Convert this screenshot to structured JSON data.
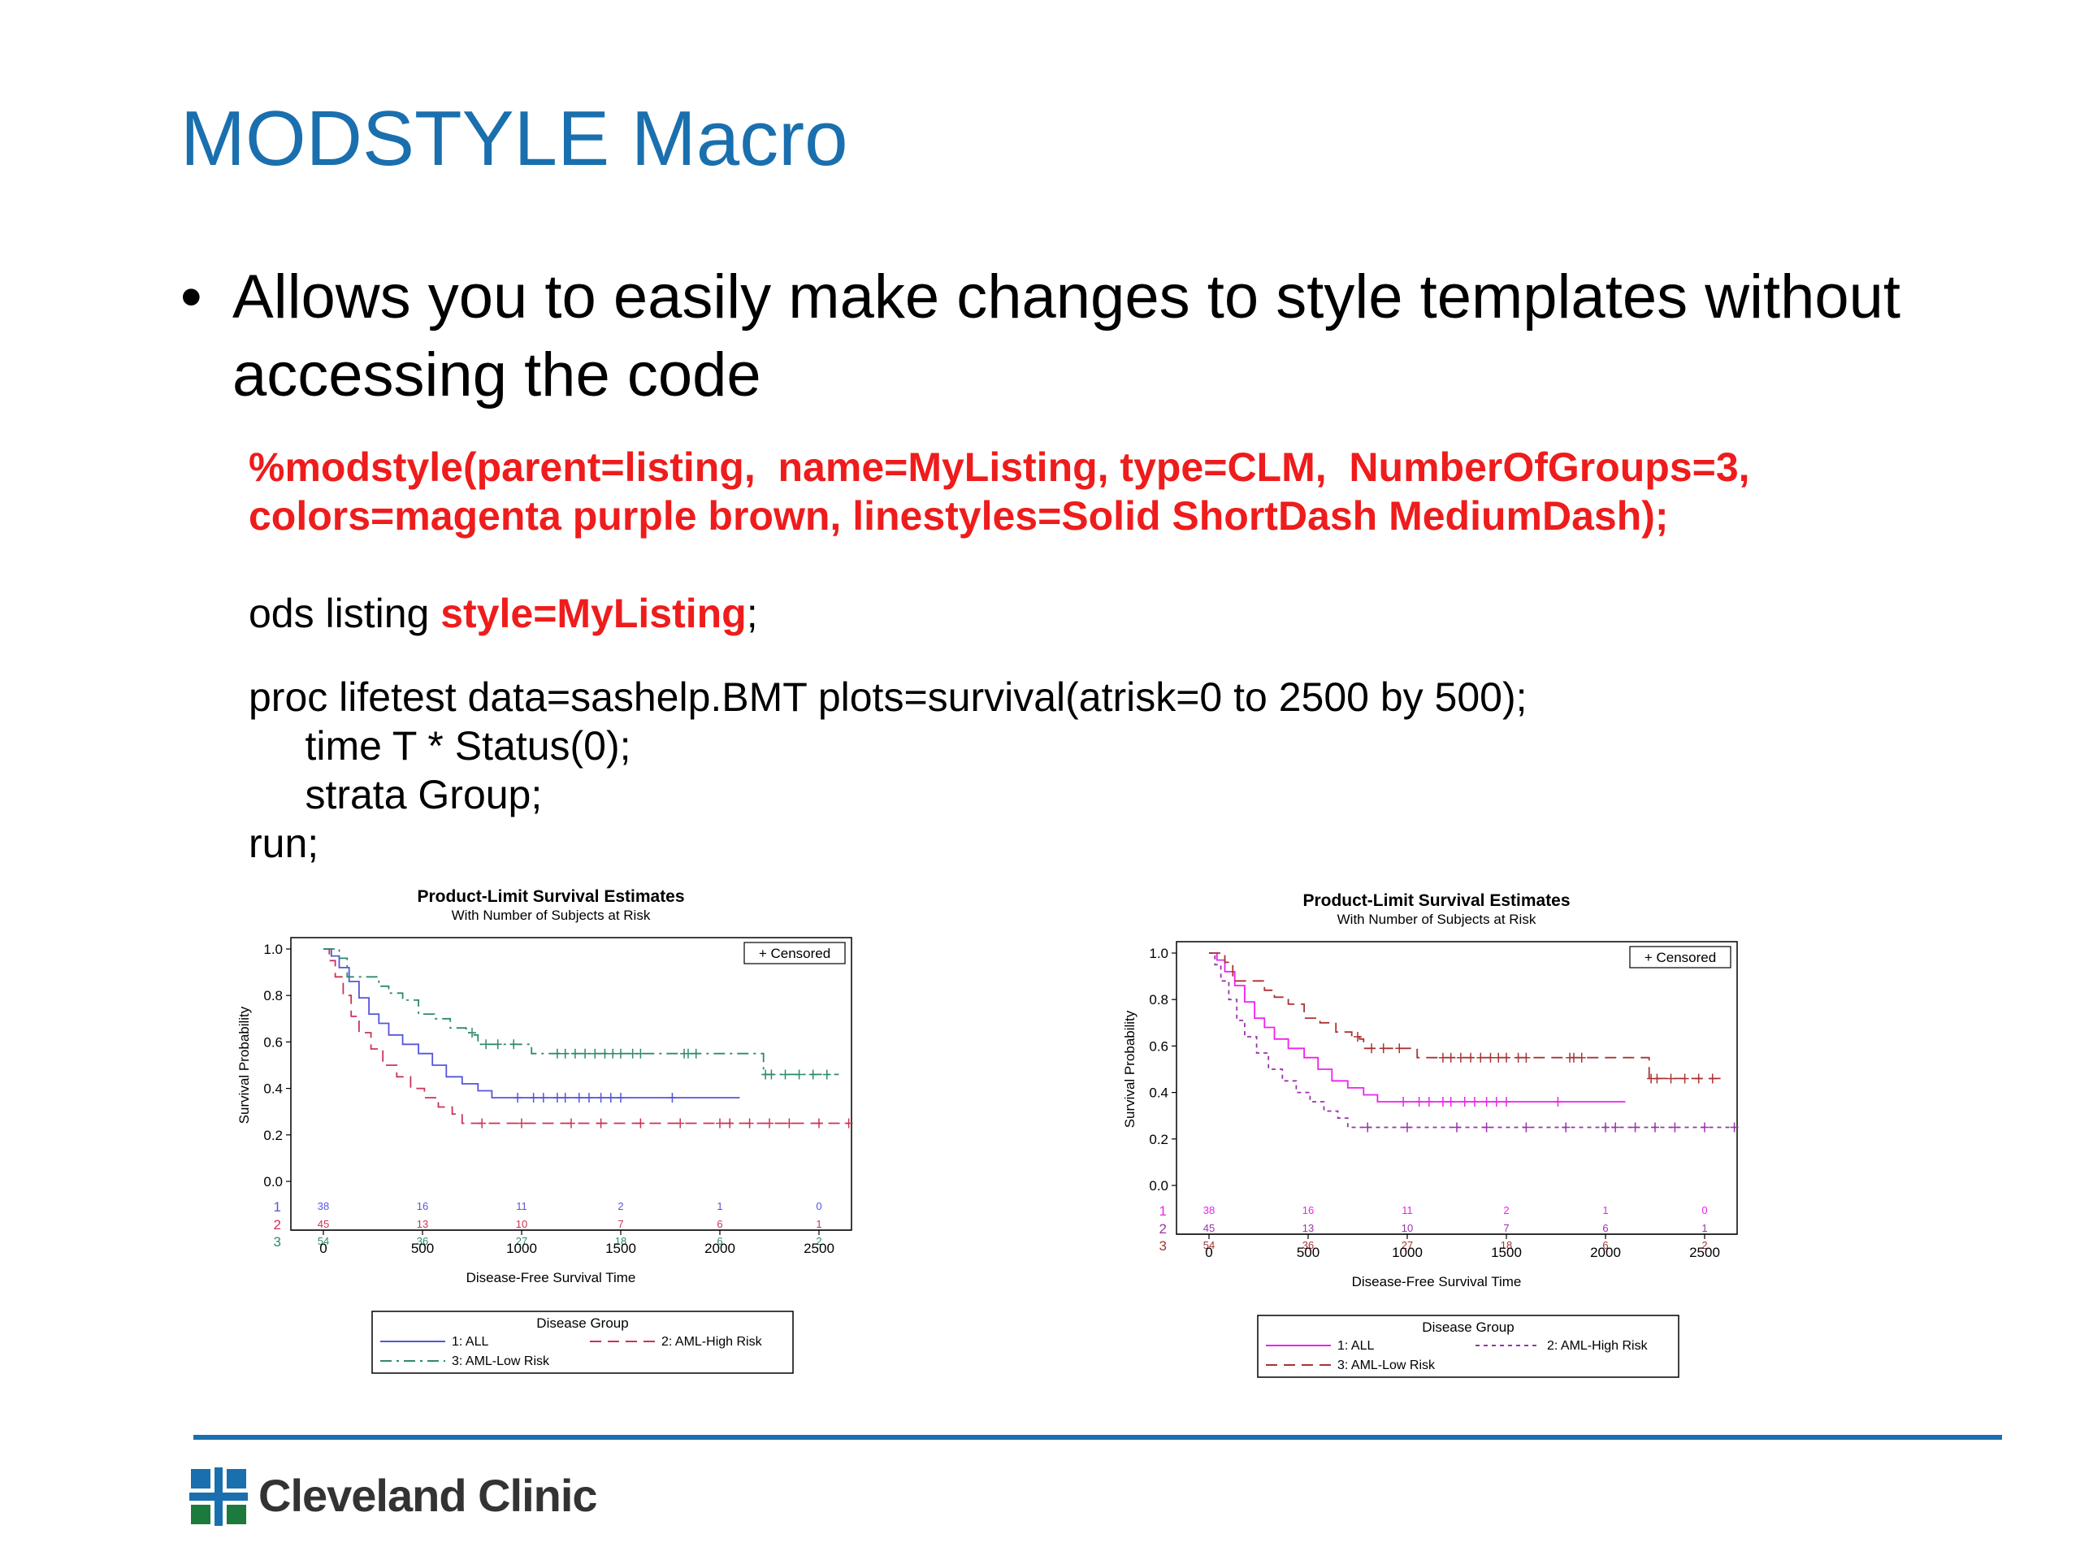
{
  "slide": {
    "title": "MODSTYLE Macro",
    "bullet": "Allows you to easily make changes to style templates without accessing the code",
    "bullet_symbol": "•",
    "code_macro_line1": "%modstyle(parent=listing,  name=MyListing, type=CLM,  NumberOfGroups=3,",
    "code_macro_line2": "colors=magenta purple brown, linestyles=Solid ShortDash MediumDash);",
    "code_ods_prefix": "ods listing ",
    "code_ods_style": "style=MyListing",
    "code_ods_suffix": ";",
    "code_proc_line1": "proc lifetest data=sashelp.BMT plots=survival(atrisk=0 to 2500 by 500);",
    "code_proc_line2": "     time T * Status(0);",
    "code_proc_line3": "     strata Group;",
    "code_proc_line4": "run;",
    "accent_color": "#1a6fae",
    "code_highlight_color": "#ee1c1c"
  },
  "footer": {
    "logo_text": "Cleveland Clinic",
    "logo_icon": "cleveland-clinic-cross-icon"
  },
  "chart_data": [
    {
      "type": "line",
      "title": "Product-Limit Survival Estimates",
      "subtitle": "With Number of Subjects at Risk",
      "xlabel": "Disease-Free Survival Time",
      "ylabel": "Survival Probability",
      "xlim": [
        0,
        2500
      ],
      "ylim": [
        0,
        1
      ],
      "xticks": [
        0,
        500,
        1000,
        1500,
        2000,
        2500
      ],
      "yticks": [
        "0.0",
        "0.2",
        "0.4",
        "0.6",
        "0.8",
        "1.0"
      ],
      "censored_legend": "+ Censored",
      "legend_title": "Disease Group",
      "series": [
        {
          "name": "1: ALL",
          "color": "#5555dd",
          "dash": "solid",
          "steps": [
            [
              0,
              1.0
            ],
            [
              40,
              0.97
            ],
            [
              80,
              0.92
            ],
            [
              130,
              0.86
            ],
            [
              180,
              0.79
            ],
            [
              230,
              0.72
            ],
            [
              280,
              0.68
            ],
            [
              330,
              0.63
            ],
            [
              400,
              0.59
            ],
            [
              480,
              0.55
            ],
            [
              550,
              0.5
            ],
            [
              620,
              0.45
            ],
            [
              700,
              0.42
            ],
            [
              780,
              0.39
            ],
            [
              850,
              0.36
            ],
            [
              2100,
              0.36
            ]
          ],
          "censored": [
            980,
            1060,
            1110,
            1180,
            1220,
            1290,
            1340,
            1400,
            1450,
            1500,
            1760
          ]
        },
        {
          "name": "2: AML-High Risk",
          "color": "#cc3355",
          "dash": "long",
          "steps": [
            [
              0,
              1.0
            ],
            [
              30,
              0.95
            ],
            [
              60,
              0.88
            ],
            [
              100,
              0.8
            ],
            [
              140,
              0.71
            ],
            [
              180,
              0.64
            ],
            [
              240,
              0.57
            ],
            [
              300,
              0.5
            ],
            [
              370,
              0.45
            ],
            [
              440,
              0.4
            ],
            [
              510,
              0.36
            ],
            [
              580,
              0.32
            ],
            [
              650,
              0.29
            ],
            [
              700,
              0.25
            ],
            [
              2650,
              0.25
            ]
          ],
          "censored": [
            800,
            1000,
            1250,
            1400,
            1600,
            1800,
            2000,
            2050,
            2150,
            2250,
            2350,
            2500,
            2650
          ]
        },
        {
          "name": "3: AML-Low Risk",
          "color": "#2e8b6a",
          "dash": "dashdot",
          "steps": [
            [
              0,
              1.0
            ],
            [
              80,
              0.96
            ],
            [
              120,
              0.88
            ],
            [
              200,
              0.88
            ],
            [
              280,
              0.84
            ],
            [
              330,
              0.81
            ],
            [
              400,
              0.78
            ],
            [
              480,
              0.72
            ],
            [
              560,
              0.7
            ],
            [
              640,
              0.66
            ],
            [
              720,
              0.64
            ],
            [
              760,
              0.63
            ],
            [
              780,
              0.59
            ],
            [
              1050,
              0.55
            ],
            [
              2200,
              0.55
            ],
            [
              2220,
              0.46
            ],
            [
              2600,
              0.46
            ]
          ],
          "censored": [
            750,
            820,
            880,
            960,
            1180,
            1220,
            1270,
            1320,
            1370,
            1420,
            1460,
            1500,
            1560,
            1600,
            1820,
            1840,
            1880,
            2230,
            2260,
            2330,
            2400,
            2470,
            2540
          ]
        }
      ],
      "at_risk": {
        "x": [
          0,
          500,
          1000,
          1500,
          2000,
          2500
        ],
        "rows": [
          {
            "label": "1",
            "values": [
              "38",
              "16",
              "11",
              "2",
              "1",
              "0"
            ]
          },
          {
            "label": "2",
            "values": [
              "45",
              "13",
              "10",
              "7",
              "6",
              "1"
            ]
          },
          {
            "label": "3",
            "values": [
              "54",
              "36",
              "27",
              "18",
              "6",
              "2"
            ]
          }
        ]
      }
    },
    {
      "type": "line",
      "title": "Product-Limit Survival Estimates",
      "subtitle": "With Number of Subjects at Risk",
      "xlabel": "Disease-Free Survival Time",
      "ylabel": "Survival Probability",
      "xlim": [
        0,
        2500
      ],
      "ylim": [
        0,
        1
      ],
      "xticks": [
        0,
        500,
        1000,
        1500,
        2000,
        2500
      ],
      "yticks": [
        "0.0",
        "0.2",
        "0.4",
        "0.6",
        "0.8",
        "1.0"
      ],
      "censored_legend": "+ Censored",
      "legend_title": "Disease Group",
      "series": [
        {
          "name": "1: ALL",
          "color": "#ee22ee",
          "dash": "solid",
          "steps": [
            [
              0,
              1.0
            ],
            [
              40,
              0.97
            ],
            [
              80,
              0.92
            ],
            [
              130,
              0.86
            ],
            [
              180,
              0.79
            ],
            [
              230,
              0.72
            ],
            [
              280,
              0.68
            ],
            [
              330,
              0.63
            ],
            [
              400,
              0.59
            ],
            [
              480,
              0.55
            ],
            [
              550,
              0.5
            ],
            [
              620,
              0.45
            ],
            [
              700,
              0.42
            ],
            [
              780,
              0.39
            ],
            [
              850,
              0.36
            ],
            [
              2100,
              0.36
            ]
          ],
          "censored": [
            980,
            1060,
            1110,
            1180,
            1220,
            1290,
            1340,
            1400,
            1450,
            1500,
            1760
          ]
        },
        {
          "name": "2: AML-High Risk",
          "color": "#9933aa",
          "dash": "short",
          "steps": [
            [
              0,
              1.0
            ],
            [
              30,
              0.95
            ],
            [
              60,
              0.88
            ],
            [
              100,
              0.8
            ],
            [
              140,
              0.71
            ],
            [
              180,
              0.64
            ],
            [
              240,
              0.57
            ],
            [
              300,
              0.5
            ],
            [
              370,
              0.45
            ],
            [
              440,
              0.4
            ],
            [
              510,
              0.36
            ],
            [
              580,
              0.32
            ],
            [
              650,
              0.29
            ],
            [
              700,
              0.25
            ],
            [
              2650,
              0.25
            ]
          ],
          "censored": [
            800,
            1000,
            1250,
            1400,
            1600,
            1800,
            2000,
            2050,
            2150,
            2250,
            2350,
            2500,
            2650
          ]
        },
        {
          "name": "3: AML-Low Risk",
          "color": "#aa3333",
          "dash": "long",
          "steps": [
            [
              0,
              1.0
            ],
            [
              80,
              0.96
            ],
            [
              120,
              0.88
            ],
            [
              200,
              0.88
            ],
            [
              280,
              0.84
            ],
            [
              330,
              0.81
            ],
            [
              400,
              0.78
            ],
            [
              480,
              0.72
            ],
            [
              560,
              0.7
            ],
            [
              640,
              0.66
            ],
            [
              720,
              0.64
            ],
            [
              760,
              0.63
            ],
            [
              780,
              0.59
            ],
            [
              1050,
              0.55
            ],
            [
              2200,
              0.55
            ],
            [
              2220,
              0.46
            ],
            [
              2600,
              0.46
            ]
          ],
          "censored": [
            750,
            820,
            880,
            960,
            1180,
            1220,
            1270,
            1320,
            1370,
            1420,
            1460,
            1500,
            1560,
            1600,
            1820,
            1840,
            1880,
            2230,
            2260,
            2330,
            2400,
            2470,
            2540
          ]
        }
      ],
      "at_risk": {
        "x": [
          0,
          500,
          1000,
          1500,
          2000,
          2500
        ],
        "rows": [
          {
            "label": "1",
            "values": [
              "38",
              "16",
              "11",
              "2",
              "1",
              "0"
            ]
          },
          {
            "label": "2",
            "values": [
              "45",
              "13",
              "10",
              "7",
              "6",
              "1"
            ]
          },
          {
            "label": "3",
            "values": [
              "54",
              "36",
              "27",
              "18",
              "6",
              "2"
            ]
          }
        ]
      }
    }
  ]
}
